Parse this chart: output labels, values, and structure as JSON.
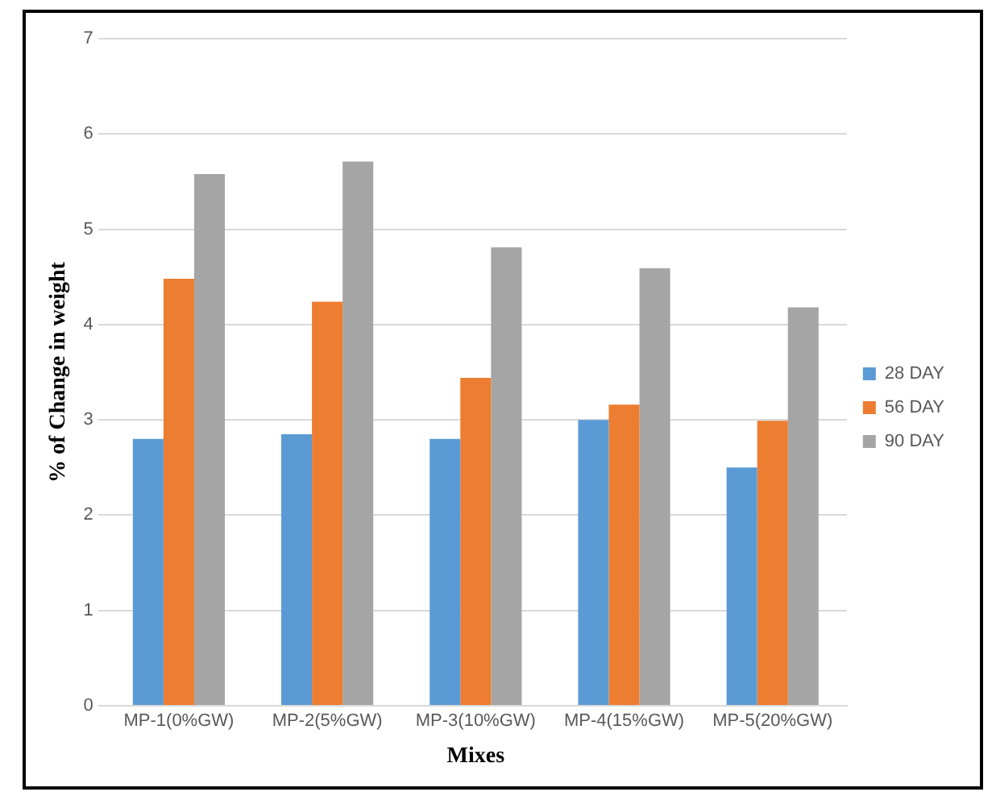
{
  "chart_data": {
    "type": "bar",
    "xlabel": "Mixes",
    "ylabel": "% of Change in weight",
    "categories": [
      "MP-1(0%GW)",
      "MP-2(5%GW)",
      "MP-3(10%GW)",
      "MP-4(15%GW)",
      "MP-5(20%GW)"
    ],
    "series": [
      {
        "name": "28 DAY",
        "color": "#5b9bd5",
        "values": [
          2.8,
          2.85,
          2.8,
          3.0,
          2.5
        ]
      },
      {
        "name": "56 DAY",
        "color": "#ed7d31",
        "values": [
          4.48,
          4.24,
          3.44,
          3.16,
          2.99
        ]
      },
      {
        "name": "90 DAY",
        "color": "#a5a5a5",
        "values": [
          5.58,
          5.71,
          4.81,
          4.59,
          4.18
        ]
      }
    ],
    "ylim": [
      0,
      7
    ],
    "yticks": [
      0,
      1,
      2,
      3,
      4,
      5,
      6,
      7
    ],
    "grid": "y",
    "legend": "right"
  }
}
